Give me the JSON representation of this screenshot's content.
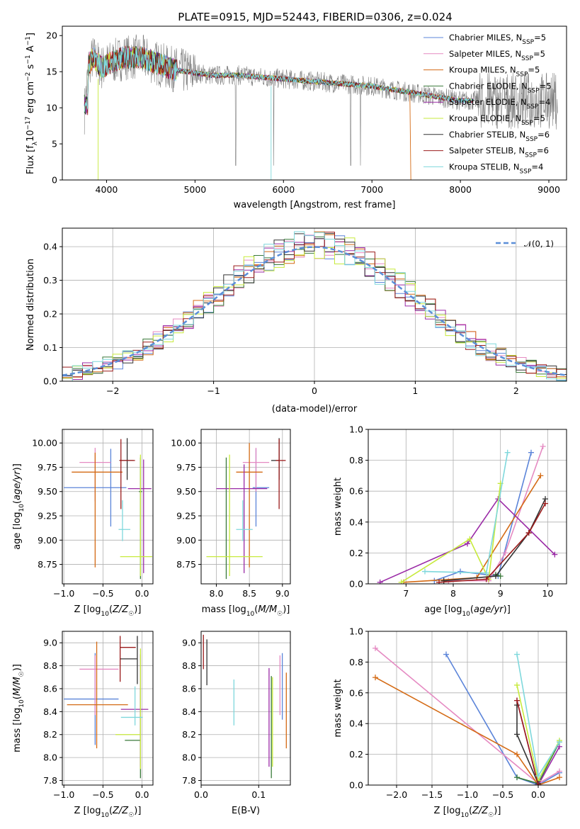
{
  "figure_title": "PLATE=0915, MJD=52443, FIBERID=0306, z=0.024",
  "model_names": [
    "Chabrier MILES, N",
    "Salpeter MILES, N",
    "Kroupa MILES, N",
    "Chabrier ELODIE, N",
    "Salpeter ELODIE, N",
    "Kroupa ELODIE, N",
    "Chabrier STELIB, N",
    "Salpeter STELIB, N",
    "Kroupa STELIB, N"
  ],
  "nssp_sub": "SSP",
  "nssp_values": [
    "=5",
    "=5",
    "=5",
    "=5",
    "=4",
    "=5",
    "=6",
    "=6",
    "=4"
  ],
  "model_colors": [
    "#5b84d9",
    "#e58ac2",
    "#d46a14",
    "#3a7a3a",
    "#9a2aa6",
    "#c7ea3c",
    "#333333",
    "#9b1b1b",
    "#7fd8dc"
  ],
  "panels": {
    "spectrum": {
      "ylabel_a": "Flux [f",
      "ylabel_sub": "λ",
      "ylabel_b": "10",
      "ylabel_sup1": "−17",
      "ylabel_c": " erg cm",
      "ylabel_sup2": "−2",
      "ylabel_d": " s",
      "ylabel_sup3": "−1",
      "ylabel_e": " A",
      "ylabel_sup4": "−1",
      "ylabel_f": "]",
      "xlabel": "wavelength [Angstrom, rest frame]",
      "xticks": [
        "4000",
        "5000",
        "6000",
        "7000",
        "8000",
        "9000"
      ],
      "yticks": [
        "0",
        "5",
        "10",
        "15",
        "20"
      ]
    },
    "residuals": {
      "xlabel": "(data-model)/error",
      "ylabel": "Normed distribution",
      "xticks": [
        "−2",
        "−1",
        "0",
        "1",
        "2"
      ],
      "yticks": [
        "0.0",
        "0.1",
        "0.2",
        "0.3",
        "0.4"
      ],
      "legend": "𝒩(0, 1)"
    },
    "age_z": {
      "ylabel": "age  [log10(age/yr)]",
      "xlabel": "Z [log10(Z/Z☉)]",
      "xticks": [
        "−1.0",
        "−0.5",
        "0.0"
      ],
      "yticks": [
        "8.75",
        "9.00",
        "9.25",
        "9.50",
        "9.75",
        "10.00"
      ]
    },
    "age_mass": {
      "xlabel": "mass [log10(M/M☉)]",
      "xticks": [
        "8.0",
        "8.5",
        "9.0"
      ],
      "yticks": [
        "8.75",
        "9.00",
        "9.25",
        "9.50",
        "9.75",
        "10.00"
      ]
    },
    "mw_age": {
      "xlabel": "age  [log10(age/yr)]",
      "ylabel": "mass weight",
      "xticks": [
        "7",
        "8",
        "9",
        "10"
      ],
      "yticks": [
        "0.0",
        "0.2",
        "0.4",
        "0.6",
        "0.8",
        "1.0"
      ]
    },
    "mass_z": {
      "ylabel": "mass [log10(M/M☉)]",
      "xlabel": "Z [log10(Z/Z☉)]",
      "xticks": [
        "−1.0",
        "−0.5",
        "0.0"
      ],
      "yticks": [
        "7.8",
        "8.0",
        "8.2",
        "8.4",
        "8.6",
        "8.8",
        "9.0"
      ]
    },
    "mass_ebv": {
      "xlabel": "E(B-V)",
      "xticks": [
        "0.0",
        "0.1"
      ],
      "yticks": [
        "7.8",
        "8.0",
        "8.2",
        "8.4",
        "8.6",
        "8.8",
        "9.0"
      ]
    },
    "mw_z": {
      "xlabel": "Z [log10(Z/Z☉)]",
      "ylabel": "mass weight",
      "xticks": [
        "−2.0",
        "−1.5",
        "−1.0",
        "−0.5",
        "0.0"
      ],
      "yticks": [
        "0.0",
        "0.2",
        "0.4",
        "0.6",
        "0.8",
        "1.0"
      ]
    }
  },
  "chart_data": [
    {
      "type": "line",
      "panel": "spectrum",
      "xlim": [
        3500,
        9200
      ],
      "ylim": [
        0,
        21.3
      ],
      "grid": false,
      "legend_position": "top-right",
      "series_shape": [
        {
          "x": 3750,
          "y": 9.5
        },
        {
          "x": 3800,
          "y": 16
        },
        {
          "x": 3850,
          "y": 17
        },
        {
          "x": 3950,
          "y": 15.5
        },
        {
          "x": 4000,
          "y": 16
        },
        {
          "x": 4100,
          "y": 16.5
        },
        {
          "x": 4200,
          "y": 17
        },
        {
          "x": 4400,
          "y": 17
        },
        {
          "x": 4700,
          "y": 15.5
        },
        {
          "x": 4900,
          "y": 15
        },
        {
          "x": 5200,
          "y": 14.5
        },
        {
          "x": 5500,
          "y": 14.5
        },
        {
          "x": 6000,
          "y": 14
        },
        {
          "x": 6500,
          "y": 13.5
        },
        {
          "x": 7000,
          "y": 13
        },
        {
          "x": 7500,
          "y": 12
        },
        {
          "x": 8000,
          "y": 11
        },
        {
          "x": 8200,
          "y": 11
        }
      ]
    },
    {
      "type": "bar",
      "panel": "residuals",
      "xlim": [
        -2.5,
        2.5
      ],
      "ylim": [
        0,
        0.455
      ],
      "grid": true,
      "legend_position": "top-right",
      "gaussian": {
        "mu": 0,
        "sigma": 1
      }
    },
    {
      "type": "scatter",
      "panel": "age_z",
      "xlim": [
        -1.02,
        0.14
      ],
      "ylim": [
        8.55,
        10.14
      ],
      "points": [
        {
          "x": -0.4,
          "xerr": [
            0.6,
            0.2
          ],
          "y": 9.54,
          "yerr": [
            0.4,
            0.4
          ]
        },
        {
          "x": -0.6,
          "xerr": [
            0.2,
            0.2
          ],
          "y": 9.8,
          "yerr": [
            0.4,
            0.15
          ]
        },
        {
          "x": -0.6,
          "xerr": [
            0.3,
            0.35
          ],
          "y": 9.7,
          "yerr": [
            0.98,
            0.2
          ]
        },
        {
          "x": -0.02,
          "xerr": [
            0.02,
            0.02
          ],
          "y": 9.5,
          "yerr": [
            0.9,
            0.35
          ]
        },
        {
          "x": 0.02,
          "xerr": [
            0.2,
            0.1
          ],
          "y": 9.53,
          "yerr": [
            0.87,
            0.3
          ]
        },
        {
          "x": -0.02,
          "xerr": [
            0.26,
            0.15
          ],
          "y": 8.83,
          "yerr": [
            0.2,
            1.05
          ]
        },
        {
          "x": -0.19,
          "xerr": [
            0.1,
            0.08
          ],
          "y": 9.82,
          "yerr": [
            0.2,
            0.23
          ]
        },
        {
          "x": -0.27,
          "xerr": [
            0.02,
            0.18
          ],
          "y": 9.82,
          "yerr": [
            0.5,
            0.22
          ]
        },
        {
          "x": -0.25,
          "xerr": [
            0.05,
            0.1
          ],
          "y": 9.11,
          "yerr": [
            0.12,
            0.3
          ]
        }
      ]
    },
    {
      "type": "scatter",
      "panel": "age_mass",
      "xlim": [
        7.77,
        9.12
      ],
      "ylim": [
        8.55,
        10.14
      ],
      "points": [
        {
          "x": 8.6,
          "xerr": [
            0.05,
            0.2
          ],
          "y": 9.54,
          "yerr": [
            0.4,
            0.4
          ]
        },
        {
          "x": 8.6,
          "xerr": [
            0.2,
            0.2
          ],
          "y": 9.8,
          "yerr": [
            0.3,
            0.15
          ]
        },
        {
          "x": 8.5,
          "xerr": [
            0.2,
            0.2
          ],
          "y": 9.7,
          "yerr": [
            0.98,
            0.3
          ]
        },
        {
          "x": 8.15,
          "xerr": [
            0.0,
            0.0
          ],
          "y": 9.5,
          "yerr": [
            0.9,
            0.35
          ]
        },
        {
          "x": 8.42,
          "xerr": [
            0.42,
            0.35
          ],
          "y": 9.53,
          "yerr": [
            0.87,
            0.25
          ]
        },
        {
          "x": 8.2,
          "xerr": [
            0.35,
            0.5
          ],
          "y": 8.83,
          "yerr": [
            0.2,
            1.05
          ]
        },
        {
          "x": 8.95,
          "xerr": [
            0.12,
            0.0
          ],
          "y": 9.82,
          "yerr": [
            0.2,
            0.23
          ]
        },
        {
          "x": 8.95,
          "xerr": [
            0.05,
            0.1
          ],
          "y": 9.82,
          "yerr": [
            0.5,
            0.22
          ]
        },
        {
          "x": 8.4,
          "xerr": [
            0.1,
            0.15
          ],
          "y": 9.11,
          "yerr": [
            0.12,
            0.3
          ]
        }
      ]
    },
    {
      "type": "line",
      "panel": "mw_age",
      "xlim": [
        6.2,
        10.4
      ],
      "ylim": [
        0,
        1
      ],
      "grid": true,
      "series": [
        {
          "values": [
            [
              7.6,
              0.02
            ],
            [
              8.15,
              0.08
            ],
            [
              8.95,
              0.05
            ],
            [
              9.65,
              0.85
            ]
          ]
        },
        {
          "values": [
            [
              7.9,
              0.02
            ],
            [
              8.75,
              0.02
            ],
            [
              9.1,
              0.2
            ],
            [
              9.9,
              0.89
            ]
          ]
        },
        {
          "values": [
            [
              6.95,
              0.01
            ],
            [
              8.5,
              0.04
            ],
            [
              9.85,
              0.7
            ]
          ]
        },
        {
          "values": [
            [
              8.9,
              0.06
            ],
            [
              9.0,
              0.05
            ]
          ]
        },
        {
          "values": [
            [
              6.45,
              0.01
            ],
            [
              8.3,
              0.26
            ],
            [
              8.95,
              0.55
            ],
            [
              10.15,
              0.19
            ]
          ]
        },
        {
          "values": [
            [
              6.9,
              0.01
            ],
            [
              8.35,
              0.29
            ],
            [
              8.75,
              0.03
            ],
            [
              9.0,
              0.65
            ]
          ]
        },
        {
          "values": [
            [
              7.8,
              0.02
            ],
            [
              8.9,
              0.05
            ],
            [
              9.6,
              0.33
            ],
            [
              9.95,
              0.55
            ]
          ]
        },
        {
          "values": [
            [
              7.7,
              0.01
            ],
            [
              8.7,
              0.03
            ],
            [
              9.6,
              0.33
            ],
            [
              9.95,
              0.52
            ]
          ]
        },
        {
          "values": [
            [
              7.4,
              0.08
            ],
            [
              8.7,
              0.07
            ],
            [
              9.15,
              0.85
            ]
          ]
        }
      ]
    },
    {
      "type": "scatter",
      "panel": "mass_z",
      "xlim": [
        -1.02,
        0.14
      ],
      "ylim": [
        7.76,
        9.1
      ],
      "points": [
        {
          "x": -0.6,
          "xerr": [
            0.4,
            0.3
          ],
          "y": 8.51,
          "yerr": [
            0.4,
            0.4
          ]
        },
        {
          "x": -0.6,
          "xerr": [
            0.2,
            0.3
          ],
          "y": 8.77,
          "yerr": [
            0.4,
            0.12
          ]
        },
        {
          "x": -0.58,
          "xerr": [
            0.38,
            0.4
          ],
          "y": 8.46,
          "yerr": [
            0.38,
            0.55
          ]
        },
        {
          "x": -0.02,
          "xerr": [
            0.2,
            0.0
          ],
          "y": 8.15,
          "yerr": [
            0.33,
            0.45
          ]
        },
        {
          "x": -0.02,
          "xerr": [
            0.25,
            0.1
          ],
          "y": 8.42,
          "yerr": [
            0.5,
            0.48
          ]
        },
        {
          "x": -0.02,
          "xerr": [
            0.32,
            0.0
          ],
          "y": 8.2,
          "yerr": [
            0.3,
            0.75
          ]
        },
        {
          "x": -0.06,
          "xerr": [
            0.22,
            0.0
          ],
          "y": 8.86,
          "yerr": [
            0.22,
            0.2
          ]
        },
        {
          "x": -0.28,
          "xerr": [
            0.0,
            0.2
          ],
          "y": 8.96,
          "yerr": [
            0.3,
            0.1
          ]
        },
        {
          "x": -0.09,
          "xerr": [
            0.18,
            0.1
          ],
          "y": 8.35,
          "yerr": [
            0.07,
            0.27
          ]
        }
      ]
    },
    {
      "type": "scatter",
      "panel": "mass_ebv",
      "xlim": [
        0.0,
        0.155
      ],
      "ylim": [
        7.76,
        9.1
      ],
      "points": [
        {
          "x": 0.141,
          "y": 8.51,
          "yerr": [
            0.18,
            0.4
          ]
        },
        {
          "x": 0.137,
          "y": 8.77,
          "yerr": [
            0.4,
            0.12
          ]
        },
        {
          "x": 0.148,
          "y": 8.41,
          "yerr": [
            0.33,
            0.33
          ]
        },
        {
          "x": 0.122,
          "y": 8.3,
          "yerr": [
            0.48,
            0.41
          ]
        },
        {
          "x": 0.118,
          "y": 8.35,
          "yerr": [
            0.43,
            0.43
          ]
        },
        {
          "x": 0.124,
          "y": 8.35,
          "yerr": [
            0.43,
            0.35
          ]
        },
        {
          "x": 0.01,
          "y": 8.83,
          "yerr": [
            0.2,
            0.2
          ]
        },
        {
          "x": 0.004,
          "y": 8.92,
          "yerr": [
            0.15,
            0.15
          ]
        },
        {
          "x": 0.057,
          "y": 8.48,
          "yerr": [
            0.2,
            0.2
          ]
        }
      ]
    },
    {
      "type": "line",
      "panel": "mw_z",
      "xlim": [
        -2.4,
        0.4
      ],
      "ylim": [
        0,
        1
      ],
      "grid": true,
      "series": [
        {
          "values": [
            [
              -1.3,
              0.85
            ],
            [
              -0.3,
              0.05
            ],
            [
              0.0,
              0.0
            ],
            [
              0.3,
              0.08
            ]
          ]
        },
        {
          "values": [
            [
              -2.3,
              0.89
            ],
            [
              0.0,
              0.01
            ],
            [
              0.3,
              0.09
            ]
          ]
        },
        {
          "values": [
            [
              -2.3,
              0.7
            ],
            [
              -0.3,
              0.2
            ],
            [
              0.0,
              0.0
            ],
            [
              0.3,
              0.05
            ]
          ]
        },
        {
          "values": [
            [
              -0.3,
              0.05
            ],
            [
              0.0,
              0.01
            ],
            [
              0.3,
              0.28
            ]
          ]
        },
        {
          "values": [
            [
              -0.3,
              0.55
            ],
            [
              0.0,
              0.0
            ],
            [
              0.3,
              0.25
            ]
          ]
        },
        {
          "values": [
            [
              -0.3,
              0.65
            ],
            [
              0.0,
              0.03
            ],
            [
              0.3,
              0.29
            ]
          ]
        },
        {
          "values": [
            [
              -0.3,
              0.52
            ],
            [
              -0.3,
              0.33
            ],
            [
              0.0,
              0.01
            ]
          ]
        },
        {
          "values": [
            [
              -0.3,
              0.55
            ],
            [
              0.0,
              0.0
            ]
          ]
        },
        {
          "values": [
            [
              -0.3,
              0.85
            ],
            [
              0.0,
              0.06
            ],
            [
              0.3,
              0.28
            ]
          ]
        }
      ]
    }
  ]
}
